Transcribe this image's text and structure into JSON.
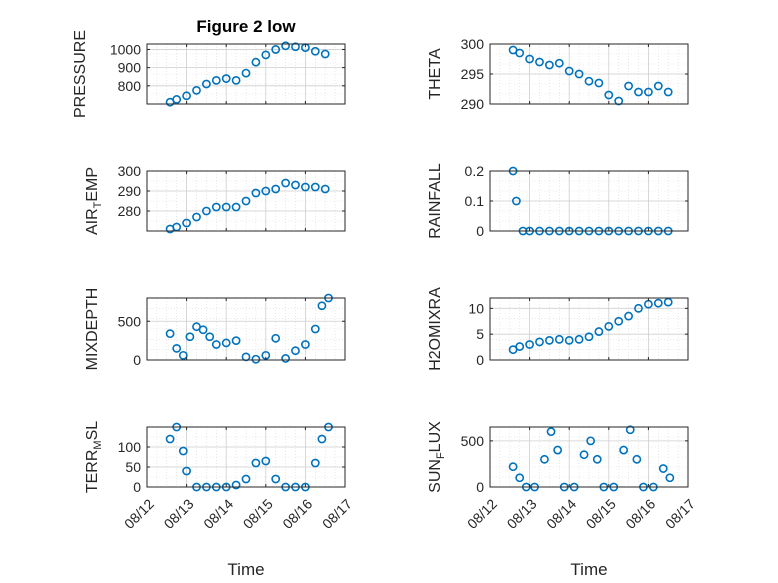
{
  "chart_data": [
    {
      "type": "scatter",
      "title": "Figure 2 low",
      "ylabel": "PRESSURE",
      "xlabel": "",
      "xlim": [
        "08/12",
        "08/17"
      ],
      "ylim": [
        700,
        1030
      ],
      "yticks": [
        800,
        900,
        1000
      ],
      "x": [
        "08/12 14:00",
        "08/12 18:00",
        "08/13 00:00",
        "08/13 06:00",
        "08/13 12:00",
        "08/13 18:00",
        "08/14 00:00",
        "08/14 06:00",
        "08/14 12:00",
        "08/14 18:00",
        "08/15 00:00",
        "08/15 06:00",
        "08/15 12:00",
        "08/15 18:00",
        "08/16 00:00",
        "08/16 06:00",
        "08/16 12:00"
      ],
      "y": [
        710,
        725,
        745,
        775,
        810,
        830,
        840,
        830,
        870,
        930,
        970,
        1000,
        1020,
        1015,
        1010,
        990,
        975
      ],
      "marker": "o",
      "color": "#0072BD",
      "grid": true
    },
    {
      "type": "scatter",
      "title": "",
      "ylabel": "THETA",
      "xlabel": "",
      "xlim": [
        "08/12",
        "08/17"
      ],
      "ylim": [
        290,
        300
      ],
      "yticks": [
        290,
        295,
        300
      ],
      "x": [
        "08/12 14:00",
        "08/12 18:00",
        "08/13 00:00",
        "08/13 06:00",
        "08/13 12:00",
        "08/13 18:00",
        "08/14 00:00",
        "08/14 06:00",
        "08/14 12:00",
        "08/14 18:00",
        "08/15 00:00",
        "08/15 06:00",
        "08/15 12:00",
        "08/15 18:00",
        "08/16 00:00",
        "08/16 06:00",
        "08/16 12:00"
      ],
      "y": [
        299,
        298.5,
        297.5,
        297,
        296.5,
        296.8,
        295.5,
        295,
        293.8,
        293.5,
        291.5,
        290.5,
        293,
        292,
        292,
        293,
        292
      ],
      "marker": "o",
      "color": "#0072BD",
      "grid": true
    },
    {
      "type": "scatter",
      "title": "",
      "ylabel": "AIR_TEMP",
      "xlabel": "",
      "xlim": [
        "08/12",
        "08/17"
      ],
      "ylim": [
        270,
        300
      ],
      "yticks": [
        280,
        290,
        300
      ],
      "x": [
        "08/12 14:00",
        "08/12 18:00",
        "08/13 00:00",
        "08/13 06:00",
        "08/13 12:00",
        "08/13 18:00",
        "08/14 00:00",
        "08/14 06:00",
        "08/14 12:00",
        "08/14 18:00",
        "08/15 00:00",
        "08/15 06:00",
        "08/15 12:00",
        "08/15 18:00",
        "08/16 00:00",
        "08/16 06:00",
        "08/16 12:00"
      ],
      "y": [
        271,
        272,
        274,
        277,
        280,
        282,
        282,
        282,
        285,
        289,
        290,
        291,
        294,
        293,
        292,
        292,
        291
      ],
      "marker": "o",
      "color": "#0072BD",
      "grid": true
    },
    {
      "type": "scatter",
      "title": "",
      "ylabel": "RAINFALL",
      "xlabel": "",
      "xlim": [
        "08/12",
        "08/17"
      ],
      "ylim": [
        0,
        0.2
      ],
      "yticks": [
        0,
        0.1,
        0.2
      ],
      "x": [
        "08/12 14:00",
        "08/12 16:00",
        "08/12 20:00",
        "08/13 00:00",
        "08/13 06:00",
        "08/13 12:00",
        "08/13 18:00",
        "08/14 00:00",
        "08/14 06:00",
        "08/14 12:00",
        "08/14 18:00",
        "08/15 00:00",
        "08/15 06:00",
        "08/15 12:00",
        "08/15 18:00",
        "08/16 00:00",
        "08/16 06:00",
        "08/16 12:00"
      ],
      "y": [
        0.2,
        0.1,
        0,
        0,
        0,
        0,
        0,
        0,
        0,
        0,
        0,
        0,
        0,
        0,
        0,
        0,
        0,
        0
      ],
      "marker": "o",
      "color": "#0072BD",
      "grid": true
    },
    {
      "type": "scatter",
      "title": "",
      "ylabel": "MIXDEPTH",
      "xlabel": "",
      "xlim": [
        "08/12",
        "08/17"
      ],
      "ylim": [
        0,
        800
      ],
      "yticks": [
        0,
        500
      ],
      "x": [
        "08/12 14:00",
        "08/12 18:00",
        "08/12 22:00",
        "08/13 02:00",
        "08/13 06:00",
        "08/13 10:00",
        "08/13 14:00",
        "08/13 18:00",
        "08/14 00:00",
        "08/14 06:00",
        "08/14 12:00",
        "08/14 18:00",
        "08/15 00:00",
        "08/15 06:00",
        "08/15 12:00",
        "08/15 18:00",
        "08/16 00:00",
        "08/16 06:00",
        "08/16 10:00",
        "08/16 14:00"
      ],
      "y": [
        340,
        150,
        60,
        300,
        430,
        390,
        300,
        200,
        220,
        250,
        40,
        10,
        60,
        280,
        20,
        120,
        200,
        400,
        700,
        800
      ],
      "marker": "o",
      "color": "#0072BD",
      "grid": true
    },
    {
      "type": "scatter",
      "title": "",
      "ylabel": "H2OMIXRA",
      "xlabel": "",
      "xlim": [
        "08/12",
        "08/17"
      ],
      "ylim": [
        0,
        12
      ],
      "yticks": [
        0,
        5,
        10
      ],
      "x": [
        "08/12 14:00",
        "08/12 18:00",
        "08/13 00:00",
        "08/13 06:00",
        "08/13 12:00",
        "08/13 18:00",
        "08/14 00:00",
        "08/14 06:00",
        "08/14 12:00",
        "08/14 18:00",
        "08/15 00:00",
        "08/15 06:00",
        "08/15 12:00",
        "08/15 18:00",
        "08/16 00:00",
        "08/16 06:00",
        "08/16 12:00"
      ],
      "y": [
        2,
        2.6,
        3,
        3.5,
        3.8,
        4,
        3.8,
        4,
        4.5,
        5.5,
        6.5,
        7.5,
        8.5,
        10,
        10.8,
        11,
        11.2
      ],
      "marker": "o",
      "color": "#0072BD",
      "grid": true
    },
    {
      "type": "scatter",
      "title": "",
      "ylabel": "TERR_MSL",
      "xlabel": "Time",
      "xlim": [
        "08/12",
        "08/17"
      ],
      "ylim": [
        0,
        150
      ],
      "yticks": [
        0,
        50,
        100
      ],
      "xticks": [
        "08/12",
        "08/13",
        "08/14",
        "08/15",
        "08/16",
        "08/17"
      ],
      "x": [
        "08/12 14:00",
        "08/12 18:00",
        "08/12 22:00",
        "08/13 00:00",
        "08/13 06:00",
        "08/13 12:00",
        "08/13 18:00",
        "08/14 00:00",
        "08/14 06:00",
        "08/14 12:00",
        "08/14 18:00",
        "08/15 00:00",
        "08/15 06:00",
        "08/15 12:00",
        "08/15 18:00",
        "08/16 00:00",
        "08/16 06:00",
        "08/16 10:00",
        "08/16 14:00"
      ],
      "y": [
        120,
        150,
        90,
        40,
        0,
        0,
        0,
        0,
        5,
        20,
        60,
        65,
        20,
        0,
        0,
        0,
        60,
        120,
        150
      ],
      "marker": "o",
      "color": "#0072BD",
      "grid": true
    },
    {
      "type": "scatter",
      "title": "",
      "ylabel": "SUN_FLUX",
      "xlabel": "Time",
      "xlim": [
        "08/12",
        "08/17"
      ],
      "ylim": [
        0,
        650
      ],
      "yticks": [
        0,
        500
      ],
      "xticks": [
        "08/12",
        "08/13",
        "08/14",
        "08/15",
        "08/16",
        "08/17"
      ],
      "x": [
        "08/12 14:00",
        "08/12 18:00",
        "08/12 22:00",
        "08/13 03:00",
        "08/13 09:00",
        "08/13 13:00",
        "08/13 17:00",
        "08/13 21:00",
        "08/14 03:00",
        "08/14 09:00",
        "08/14 13:00",
        "08/14 17:00",
        "08/14 21:00",
        "08/15 03:00",
        "08/15 09:00",
        "08/15 13:00",
        "08/15 17:00",
        "08/15 21:00",
        "08/16 03:00",
        "08/16 09:00",
        "08/16 13:00"
      ],
      "y": [
        220,
        100,
        0,
        0,
        300,
        600,
        400,
        0,
        0,
        350,
        500,
        300,
        0,
        0,
        400,
        620,
        300,
        0,
        0,
        200,
        100
      ],
      "marker": "o",
      "color": "#0072BD",
      "grid": true
    }
  ]
}
